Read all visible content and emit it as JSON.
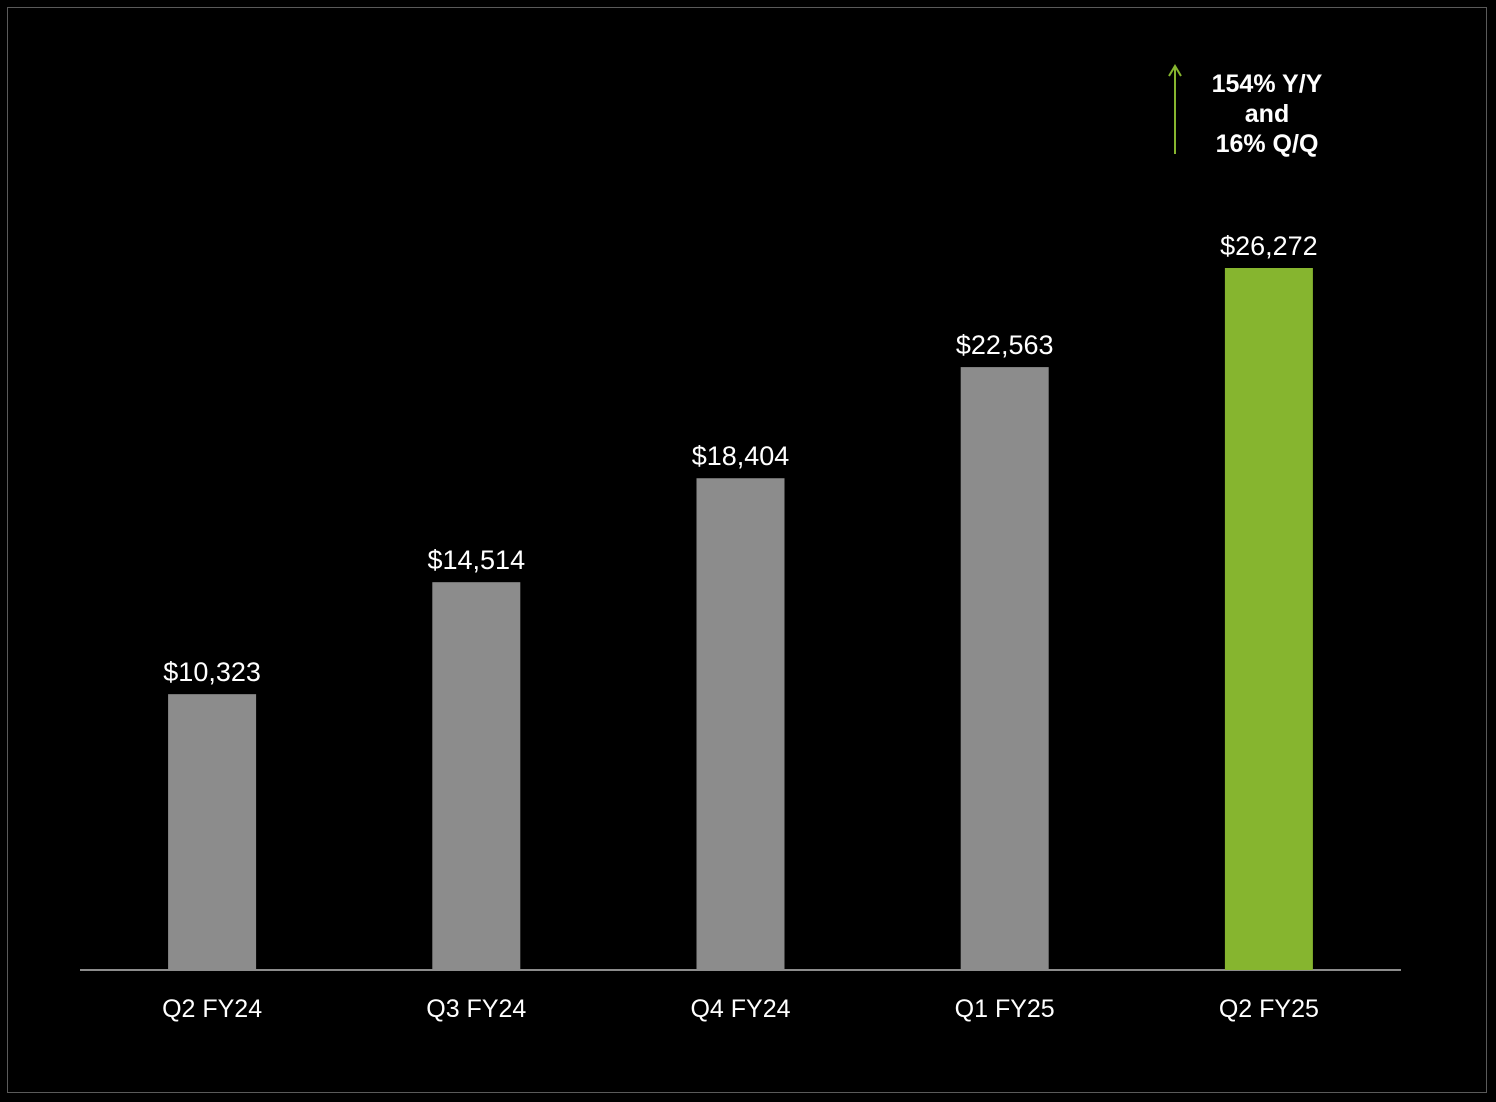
{
  "chart_data": {
    "type": "bar",
    "categories": [
      "Q2 FY24",
      "Q3 FY24",
      "Q4 FY24",
      "Q1 FY25",
      "Q2 FY25"
    ],
    "values": [
      10323,
      14514,
      18404,
      22563,
      26272
    ],
    "value_labels": [
      "$10,323",
      "$14,514",
      "$18,404",
      "$22,563",
      "$26,272"
    ],
    "title": "",
    "xlabel": "",
    "ylabel": "",
    "ylim": [
      0,
      36000
    ],
    "grid": false,
    "highlight_index": 4,
    "colors": {
      "background": "#000000",
      "bar": "#8c8c8c",
      "highlight_bar": "#86b52f",
      "axis": "#8c8c8c",
      "arrow": "#86b52f",
      "text": "#ffffff"
    },
    "annotation": {
      "lines": [
        "154% Y/Y",
        "and",
        "16% Q/Q"
      ],
      "icon": "up-arrow-icon"
    }
  }
}
